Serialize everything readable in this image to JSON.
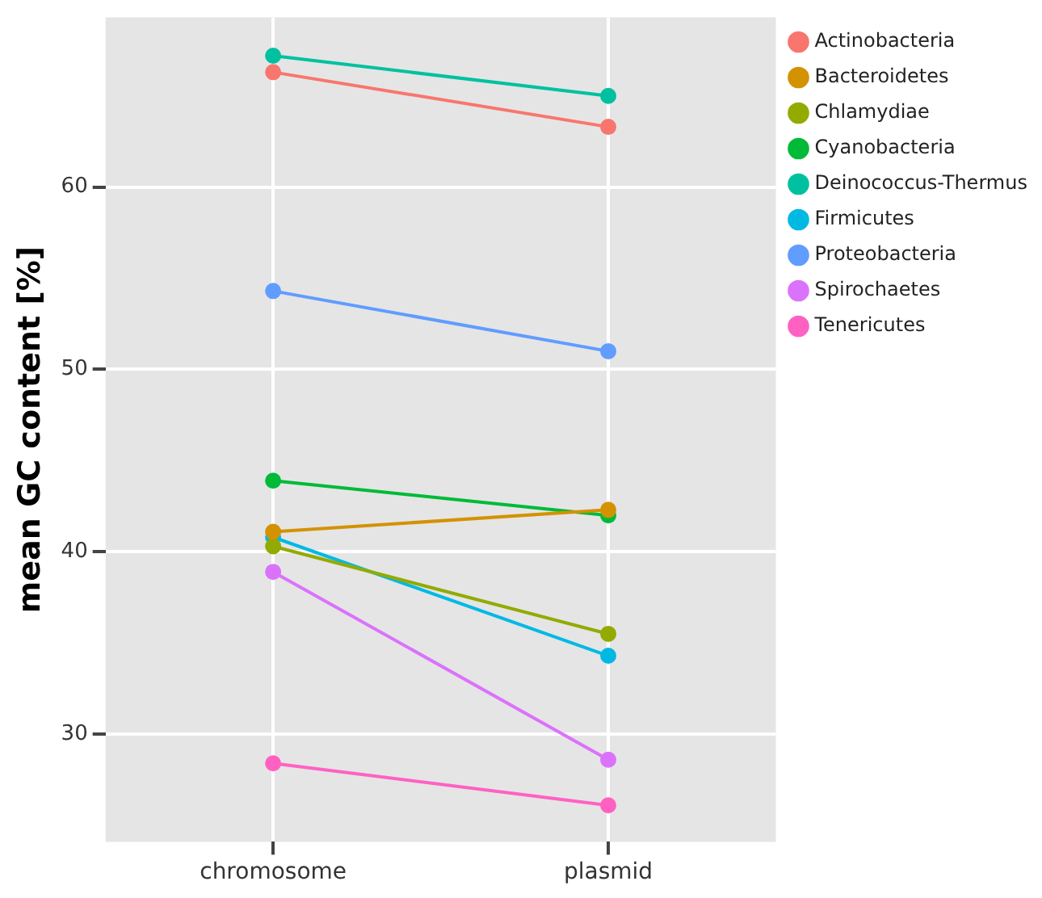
{
  "chart_data": {
    "type": "line",
    "ylabel": "mean GC content [%]",
    "categories": [
      "chromosome",
      "plasmid"
    ],
    "series": [
      {
        "name": "Actinobacteria",
        "color": "#f8766d",
        "values": [
          66.3,
          63.3
        ]
      },
      {
        "name": "Bacteroidetes",
        "color": "#d39200",
        "values": [
          41.1,
          42.3
        ]
      },
      {
        "name": "Chlamydiae",
        "color": "#93aa00",
        "values": [
          40.3,
          35.5
        ]
      },
      {
        "name": "Cyanobacteria",
        "color": "#00ba38",
        "values": [
          43.9,
          42.0
        ]
      },
      {
        "name": "Deinococcus-Thermus",
        "color": "#00c19f",
        "values": [
          67.2,
          65.0
        ]
      },
      {
        "name": "Firmicutes",
        "color": "#00b9e3",
        "values": [
          40.8,
          34.3
        ]
      },
      {
        "name": "Proteobacteria",
        "color": "#619cff",
        "values": [
          54.3,
          51.0
        ]
      },
      {
        "name": "Spirochaetes",
        "color": "#db72fb",
        "values": [
          38.9,
          28.6
        ]
      },
      {
        "name": "Tenericutes",
        "color": "#ff61c3",
        "values": [
          28.4,
          26.1
        ]
      }
    ],
    "ylim": [
      24.1,
      69.3
    ],
    "yticks": [
      30,
      40,
      50,
      60
    ],
    "grid": true,
    "legend": "right",
    "marker": "circle",
    "line_style": "solid"
  }
}
